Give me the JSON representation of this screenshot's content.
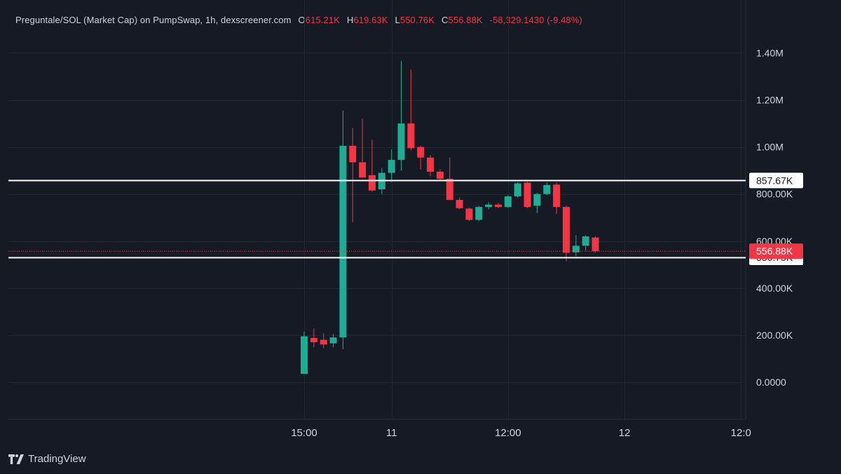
{
  "header": {
    "symbol": "Preguntale/SOL (Market Cap) on PumpSwap, 1h, dexscreener.com",
    "open_label": "O",
    "open_value": "615.21K",
    "high_label": "H",
    "high_value": "619.63K",
    "low_label": "L",
    "low_value": "550.76K",
    "close_label": "C",
    "close_value": "556.88K",
    "change": "-58,329.1430 (-9.48%)"
  },
  "branding": {
    "text": "TradingView",
    "icon": "tradingview-logo-icon"
  },
  "colors": {
    "background": "#161a25",
    "up": "#22ab94",
    "down": "#f23645",
    "grid": "#232734",
    "text": "#d1d4dc",
    "level_line": "#ffffff"
  },
  "chart_data": {
    "type": "candlestick",
    "ylim": [
      -170000,
      1520000
    ],
    "yticks": [
      {
        "value": 0,
        "label": "0.0000"
      },
      {
        "value": 200000,
        "label": "200.00K"
      },
      {
        "value": 400000,
        "label": "400.00K"
      },
      {
        "value": 600000,
        "label": "600.00K"
      },
      {
        "value": 800000,
        "label": "800.00K"
      },
      {
        "value": 1000000,
        "label": "1.00M"
      },
      {
        "value": 1200000,
        "label": "1.20M"
      },
      {
        "value": 1400000,
        "label": "1.40M"
      }
    ],
    "xticks": [
      {
        "index": 0,
        "label": "15:00"
      },
      {
        "index": 9,
        "label": "11"
      },
      {
        "index": 21,
        "label": "12:00"
      },
      {
        "index": 33,
        "label": "12"
      },
      {
        "index": 45,
        "label": "12:0"
      }
    ],
    "grid": true,
    "horizontal_levels": [
      {
        "value": 857670,
        "label": "857.67K"
      },
      {
        "value": 530750,
        "label": "530.75K"
      }
    ],
    "last_price": {
      "value": 556880,
      "label": "556.88K"
    },
    "candles": [
      {
        "o": 35000,
        "h": 215000,
        "l": 35000,
        "c": 195000
      },
      {
        "o": 188000,
        "h": 228000,
        "l": 148000,
        "c": 170000
      },
      {
        "o": 180000,
        "h": 208000,
        "l": 145000,
        "c": 160000
      },
      {
        "o": 165000,
        "h": 205000,
        "l": 148000,
        "c": 190000
      },
      {
        "o": 190000,
        "h": 1155000,
        "l": 140000,
        "c": 1005000
      },
      {
        "o": 1005000,
        "h": 1080000,
        "l": 680000,
        "c": 935000
      },
      {
        "o": 935000,
        "h": 1120000,
        "l": 870000,
        "c": 870000
      },
      {
        "o": 880000,
        "h": 1030000,
        "l": 810000,
        "c": 815000
      },
      {
        "o": 820000,
        "h": 910000,
        "l": 800000,
        "c": 890000
      },
      {
        "o": 890000,
        "h": 990000,
        "l": 850000,
        "c": 945000
      },
      {
        "o": 945000,
        "h": 1365000,
        "l": 900000,
        "c": 1100000
      },
      {
        "o": 1100000,
        "h": 1330000,
        "l": 985000,
        "c": 995000
      },
      {
        "o": 1000000,
        "h": 1005000,
        "l": 905000,
        "c": 955000
      },
      {
        "o": 955000,
        "h": 965000,
        "l": 875000,
        "c": 895000
      },
      {
        "o": 895000,
        "h": 905000,
        "l": 855000,
        "c": 865000
      },
      {
        "o": 865000,
        "h": 955000,
        "l": 775000,
        "c": 775000
      },
      {
        "o": 775000,
        "h": 785000,
        "l": 735000,
        "c": 740000
      },
      {
        "o": 738000,
        "h": 742000,
        "l": 685000,
        "c": 690000
      },
      {
        "o": 690000,
        "h": 750000,
        "l": 685000,
        "c": 745000
      },
      {
        "o": 745000,
        "h": 765000,
        "l": 735000,
        "c": 755000
      },
      {
        "o": 755000,
        "h": 762000,
        "l": 740000,
        "c": 745000
      },
      {
        "o": 745000,
        "h": 795000,
        "l": 740000,
        "c": 790000
      },
      {
        "o": 790000,
        "h": 850000,
        "l": 785000,
        "c": 845000
      },
      {
        "o": 848000,
        "h": 852000,
        "l": 740000,
        "c": 745000
      },
      {
        "o": 750000,
        "h": 805000,
        "l": 720000,
        "c": 800000
      },
      {
        "o": 800000,
        "h": 848000,
        "l": 795000,
        "c": 838000
      },
      {
        "o": 840000,
        "h": 848000,
        "l": 715000,
        "c": 745000
      },
      {
        "o": 745000,
        "h": 750000,
        "l": 515000,
        "c": 550000
      },
      {
        "o": 552000,
        "h": 625000,
        "l": 535000,
        "c": 580000
      },
      {
        "o": 580000,
        "h": 625000,
        "l": 560000,
        "c": 620000
      },
      {
        "o": 615210,
        "h": 619630,
        "l": 550760,
        "c": 556880
      }
    ]
  }
}
